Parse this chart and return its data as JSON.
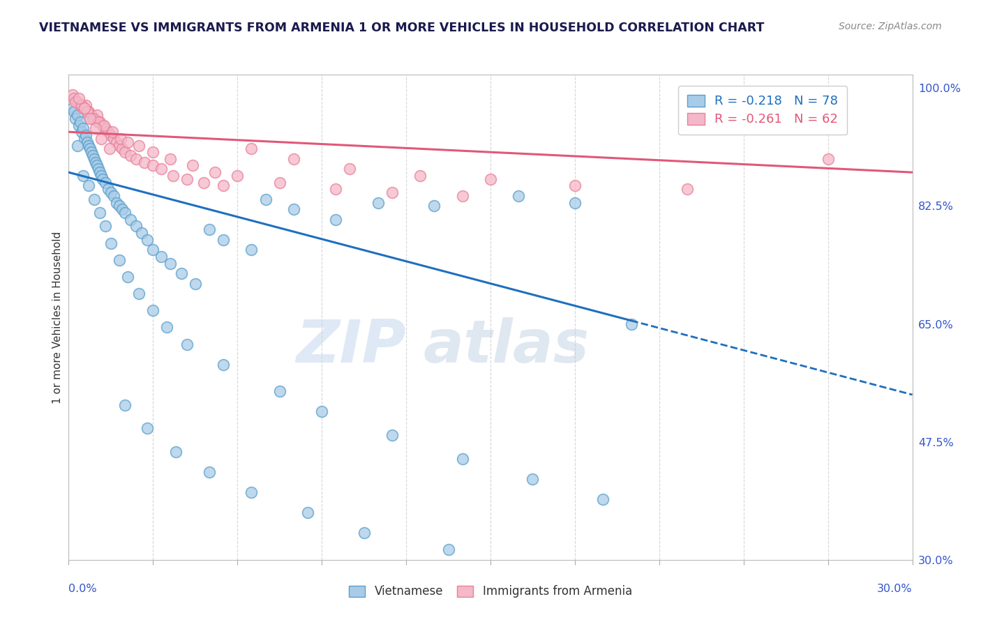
{
  "title": "VIETNAMESE VS IMMIGRANTS FROM ARMENIA 1 OR MORE VEHICLES IN HOUSEHOLD CORRELATION CHART",
  "source": "Source: ZipAtlas.com",
  "ylabel": "1 or more Vehicles in Household",
  "y_right_ticks": [
    100.0,
    82.5,
    65.0,
    47.5,
    30.0
  ],
  "x_range": [
    0.0,
    30.0
  ],
  "y_range": [
    30.0,
    102.0
  ],
  "legend_blue_label": "R = -0.218   N = 78",
  "legend_pink_label": "R = -0.261   N = 62",
  "blue_color": "#a8cce8",
  "pink_color": "#f4b8c8",
  "blue_edge_color": "#5b9ec9",
  "pink_edge_color": "#e8809a",
  "blue_line_color": "#1f6fbf",
  "pink_line_color": "#e05878",
  "watermark_zip": "ZIP",
  "watermark_atlas": "atlas",
  "blue_line_x0": 0.0,
  "blue_line_y0": 87.5,
  "blue_line_x1": 20.0,
  "blue_line_y1": 65.5,
  "blue_dash_x0": 20.0,
  "blue_dash_y0": 65.5,
  "blue_dash_x1": 30.0,
  "blue_dash_y1": 54.5,
  "pink_line_x0": 0.0,
  "pink_line_y0": 93.5,
  "pink_line_x1": 30.0,
  "pink_line_y1": 87.5,
  "blue_scatter_x": [
    0.15,
    0.2,
    0.25,
    0.3,
    0.35,
    0.4,
    0.45,
    0.5,
    0.55,
    0.6,
    0.65,
    0.7,
    0.75,
    0.8,
    0.85,
    0.9,
    0.95,
    1.0,
    1.05,
    1.1,
    1.15,
    1.2,
    1.3,
    1.4,
    1.5,
    1.6,
    1.7,
    1.8,
    1.9,
    2.0,
    2.2,
    2.4,
    2.6,
    2.8,
    3.0,
    3.3,
    3.6,
    4.0,
    4.5,
    5.0,
    5.5,
    6.5,
    7.0,
    8.0,
    9.5,
    11.0,
    13.0,
    16.0,
    18.0,
    20.0,
    0.3,
    0.5,
    0.7,
    0.9,
    1.1,
    1.3,
    1.5,
    1.8,
    2.1,
    2.5,
    3.0,
    3.5,
    4.2,
    5.5,
    7.5,
    9.0,
    11.5,
    14.0,
    16.5,
    19.0,
    2.0,
    2.8,
    3.8,
    5.0,
    6.5,
    8.5,
    10.5,
    13.5
  ],
  "blue_scatter_y": [
    97.0,
    96.5,
    95.5,
    96.0,
    94.5,
    95.0,
    93.5,
    94.0,
    92.5,
    93.0,
    92.0,
    91.5,
    91.0,
    90.5,
    90.0,
    89.5,
    89.0,
    88.5,
    88.0,
    87.5,
    87.0,
    86.5,
    86.0,
    85.0,
    84.5,
    84.0,
    83.0,
    82.5,
    82.0,
    81.5,
    80.5,
    79.5,
    78.5,
    77.5,
    76.0,
    75.0,
    74.0,
    72.5,
    71.0,
    79.0,
    77.5,
    76.0,
    83.5,
    82.0,
    80.5,
    83.0,
    82.5,
    84.0,
    83.0,
    65.0,
    91.5,
    87.0,
    85.5,
    83.5,
    81.5,
    79.5,
    77.0,
    74.5,
    72.0,
    69.5,
    67.0,
    64.5,
    62.0,
    59.0,
    55.0,
    52.0,
    48.5,
    45.0,
    42.0,
    39.0,
    53.0,
    49.5,
    46.0,
    43.0,
    40.0,
    37.0,
    34.0,
    31.5
  ],
  "pink_scatter_x": [
    0.15,
    0.2,
    0.3,
    0.4,
    0.5,
    0.6,
    0.7,
    0.8,
    0.9,
    1.0,
    1.1,
    1.2,
    1.3,
    1.4,
    1.5,
    1.6,
    1.7,
    1.8,
    1.9,
    2.0,
    2.2,
    2.4,
    2.7,
    3.0,
    3.3,
    3.7,
    4.2,
    4.8,
    5.5,
    6.5,
    8.0,
    10.0,
    12.5,
    15.0,
    18.0,
    22.0,
    27.0,
    0.25,
    0.45,
    0.65,
    0.85,
    1.05,
    1.25,
    1.55,
    1.85,
    2.1,
    2.5,
    3.0,
    3.6,
    4.4,
    5.2,
    6.0,
    7.5,
    9.5,
    11.5,
    14.0,
    0.35,
    0.55,
    0.75,
    0.95,
    1.15,
    1.45
  ],
  "pink_scatter_y": [
    99.0,
    98.5,
    98.0,
    97.5,
    97.0,
    97.5,
    96.5,
    96.0,
    95.5,
    96.0,
    95.0,
    94.5,
    94.0,
    93.5,
    93.0,
    92.5,
    92.0,
    91.5,
    91.0,
    90.5,
    90.0,
    89.5,
    89.0,
    88.5,
    88.0,
    87.0,
    86.5,
    86.0,
    85.5,
    91.0,
    89.5,
    88.0,
    87.0,
    86.5,
    85.5,
    85.0,
    89.5,
    98.0,
    97.5,
    96.5,
    95.5,
    95.0,
    94.5,
    93.5,
    92.5,
    92.0,
    91.5,
    90.5,
    89.5,
    88.5,
    87.5,
    87.0,
    86.0,
    85.0,
    84.5,
    84.0,
    98.5,
    97.0,
    95.5,
    94.0,
    92.5,
    91.0
  ]
}
